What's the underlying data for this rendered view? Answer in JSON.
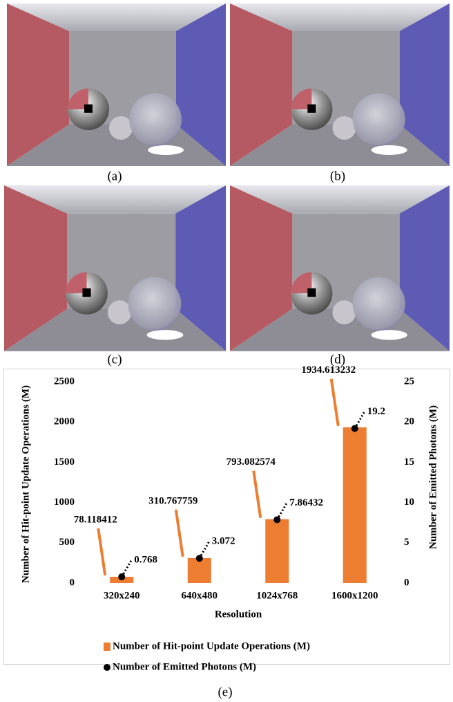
{
  "captions": [
    "(a)",
    "(b)",
    "(c)",
    "(d)",
    "(e)"
  ],
  "chart_data": {
    "type": "bar",
    "x_label": "Resolution",
    "y_label": "Number of Hit-point Update Operations (M)",
    "y2_label": "Number of Emitted Photons (M)",
    "categories": [
      "320x240",
      "640x480",
      "1024x768",
      "1600x1200"
    ],
    "series": [
      {
        "name": "Number of Hit-point Update Operations (M)",
        "type": "bar",
        "color": "#ed7d31",
        "values": [
          78.118412,
          310.767759,
          793.082574,
          1934.613232
        ]
      },
      {
        "name": "Number of Emitted Photons (M)",
        "type": "scatter",
        "axis": "y2",
        "color": "#000000",
        "values": [
          0.768,
          3.072,
          7.86432,
          19.2
        ]
      }
    ],
    "ylim": [
      0,
      2500
    ],
    "yticks": [
      0,
      500,
      1000,
      1500,
      2000,
      2500
    ],
    "y2lim": [
      0,
      25
    ],
    "y2ticks": [
      0,
      5,
      10,
      15,
      20,
      25
    ],
    "legend": "bottom"
  }
}
